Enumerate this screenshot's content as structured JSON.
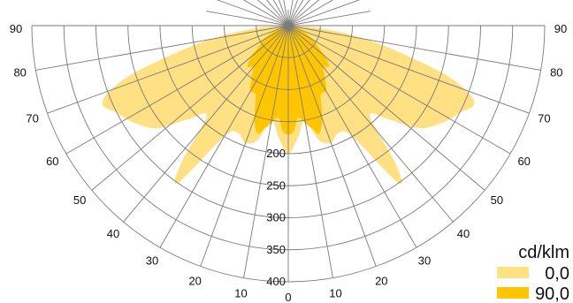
{
  "chart_data": {
    "type": "polar",
    "unit": "cd/klm",
    "angle_ticks": [
      90,
      80,
      70,
      60,
      50,
      40,
      30,
      20,
      10,
      0,
      10,
      20,
      30,
      40,
      50,
      60,
      70,
      80,
      90
    ],
    "radial_ticks": [
      200,
      250,
      300,
      350,
      400
    ],
    "radial_max": 400,
    "legend_position": "bottom-right",
    "series": [
      {
        "name": "0,0",
        "color": "#ffe082",
        "points": [
          {
            "angle": 0,
            "value": 200
          },
          {
            "angle": 5,
            "value": 175
          },
          {
            "angle": 10,
            "value": 150
          },
          {
            "angle": 15,
            "value": 185
          },
          {
            "angle": 20,
            "value": 195
          },
          {
            "angle": 25,
            "value": 185
          },
          {
            "angle": 30,
            "value": 200
          },
          {
            "angle": 35,
            "value": 300
          },
          {
            "angle": 38,
            "value": 270
          },
          {
            "angle": 42,
            "value": 190
          },
          {
            "angle": 47,
            "value": 215
          },
          {
            "angle": 52,
            "value": 260
          },
          {
            "angle": 58,
            "value": 285
          },
          {
            "angle": 63,
            "value": 300
          },
          {
            "angle": 67,
            "value": 315
          },
          {
            "angle": 70,
            "value": 295
          },
          {
            "angle": 73,
            "value": 250
          },
          {
            "angle": 77,
            "value": 170
          },
          {
            "angle": 81,
            "value": 110
          },
          {
            "angle": 85,
            "value": 55
          },
          {
            "angle": 88,
            "value": 20
          },
          {
            "angle": 90,
            "value": 0
          }
        ]
      },
      {
        "name": "90,0",
        "color": "#ffc600",
        "points": [
          {
            "angle": 0,
            "value": 170
          },
          {
            "angle": 3,
            "value": 165
          },
          {
            "angle": 6,
            "value": 145
          },
          {
            "angle": 10,
            "value": 155
          },
          {
            "angle": 13,
            "value": 165
          },
          {
            "angle": 16,
            "value": 175
          },
          {
            "angle": 20,
            "value": 155
          },
          {
            "angle": 25,
            "value": 120
          },
          {
            "angle": 30,
            "value": 118
          },
          {
            "angle": 35,
            "value": 100
          },
          {
            "angle": 40,
            "value": 85
          },
          {
            "angle": 45,
            "value": 90
          },
          {
            "angle": 50,
            "value": 75
          },
          {
            "angle": 55,
            "value": 55
          },
          {
            "angle": 60,
            "value": 45
          },
          {
            "angle": 65,
            "value": 33
          },
          {
            "angle": 70,
            "value": 22
          },
          {
            "angle": 75,
            "value": 15
          },
          {
            "angle": 80,
            "value": 10
          },
          {
            "angle": 85,
            "value": 5
          },
          {
            "angle": 90,
            "value": 0
          }
        ]
      }
    ]
  }
}
